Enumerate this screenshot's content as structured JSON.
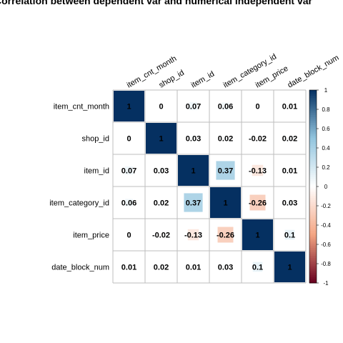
{
  "chart_data": {
    "type": "heatmap",
    "title": "Correlation between dependent var and numerical independent var",
    "variables": [
      "item_cnt_month",
      "shop_id",
      "item_id",
      "item_category_id",
      "item_price",
      "date_block_num"
    ],
    "matrix": [
      [
        1,
        0,
        0.07,
        0.06,
        0,
        0.01
      ],
      [
        0,
        1,
        0.03,
        0.02,
        -0.02,
        0.02
      ],
      [
        0.07,
        0.03,
        1,
        0.37,
        -0.13,
        0.01
      ],
      [
        0.06,
        0.02,
        0.37,
        1,
        -0.26,
        0.03
      ],
      [
        0,
        -0.02,
        -0.13,
        -0.26,
        1,
        0.1
      ],
      [
        0.01,
        0.02,
        0.01,
        0.03,
        0.1,
        1
      ]
    ],
    "value_labels": [
      [
        "1",
        "0",
        "0.07",
        "0.06",
        "0",
        "0.01"
      ],
      [
        "0",
        "1",
        "0.03",
        "0.02",
        "-0.02",
        "0.02"
      ],
      [
        "0.07",
        "0.03",
        "1",
        "0.37",
        "-0.13",
        "0.01"
      ],
      [
        "0.06",
        "0.02",
        "0.37",
        "1",
        "-0.26",
        "0.03"
      ],
      [
        "0",
        "-0.02",
        "-0.13",
        "-0.26",
        "1",
        "0.1"
      ],
      [
        "0.01",
        "0.02",
        "0.01",
        "0.03",
        "0.1",
        "1"
      ]
    ],
    "colorbar": {
      "range": [
        -1,
        1
      ],
      "tick_labels": [
        "1",
        "0.8",
        "0.6",
        "0.4",
        "0.2",
        "0",
        "-0.2",
        "-0.4",
        "-0.6",
        "-0.8",
        "-1"
      ],
      "tick_values": [
        1,
        0.8,
        0.6,
        0.4,
        0.2,
        0,
        -0.2,
        -0.4,
        -0.6,
        -0.8,
        -1
      ],
      "colors": {
        "negative_full": "#67001f",
        "negative_mid": "#f4a582",
        "neutral": "#ffffff",
        "positive_mid": "#92c5de",
        "positive_full": "#053061"
      }
    },
    "grid": true,
    "legend_placement": "right"
  }
}
